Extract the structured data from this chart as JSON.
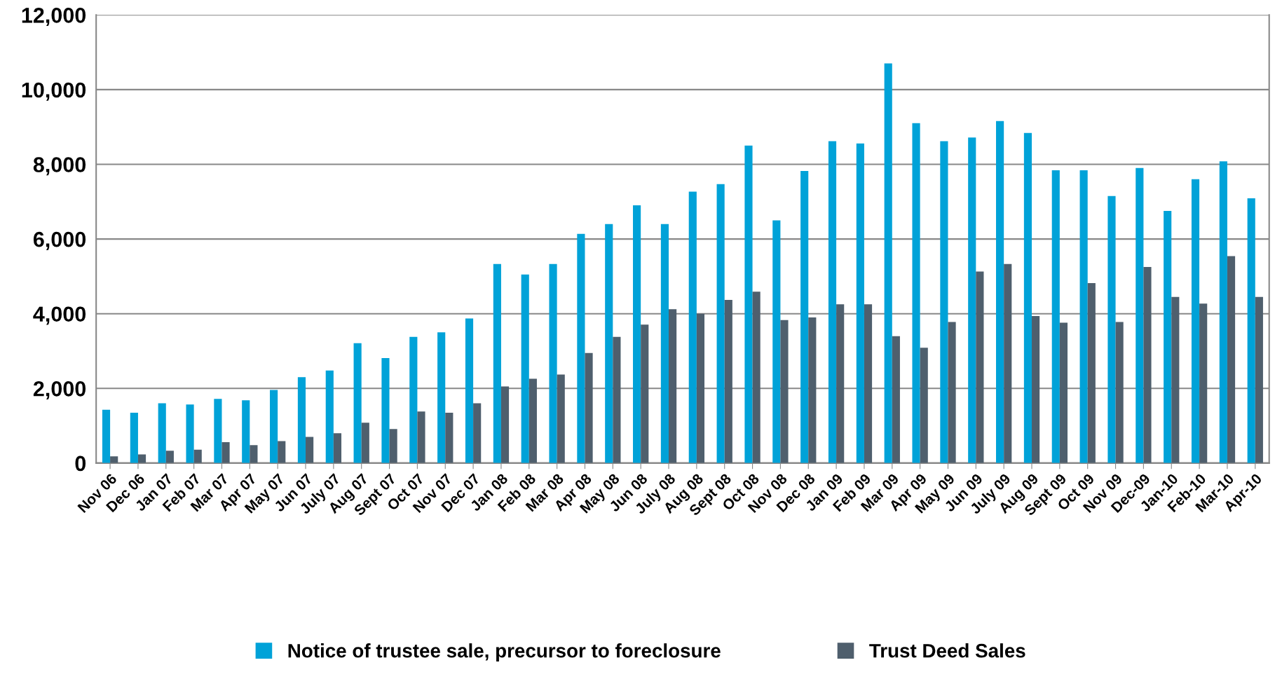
{
  "chart_data": {
    "type": "bar",
    "categories": [
      "Nov 06",
      "Dec 06",
      "Jan 07",
      "Feb 07",
      "Mar 07",
      "Apr 07",
      "May 07",
      "Jun 07",
      "July 07",
      "Aug 07",
      "Sept 07",
      "Oct 07",
      "Nov 07",
      "Dec 07",
      "Jan 08",
      "Feb 08",
      "Mar 08",
      "Apr 08",
      "May 08",
      "Jun 08",
      "July 08",
      "Aug 08",
      "Sept 08",
      "Oct 08",
      "Nov 08",
      "Dec 08",
      "Jan 09",
      "Feb 09",
      "Mar 09",
      "Apr 09",
      "May 09",
      "Jun 09",
      "July 09",
      "Aug 09",
      "Sept 09",
      "Oct 09",
      "Nov 09",
      "Dec-09",
      "Jan-10",
      "Feb-10",
      "Mar-10",
      "Apr-10"
    ],
    "series": [
      {
        "name": "Notice of trustee sale, precursor to foreclosure",
        "color": "#00a2d8",
        "values": [
          1430,
          1350,
          1600,
          1570,
          1720,
          1680,
          1960,
          2300,
          2480,
          3210,
          2810,
          3380,
          3500,
          3870,
          5330,
          5050,
          5330,
          6140,
          6400,
          6900,
          6400,
          7270,
          7470,
          8500,
          6500,
          7820,
          8620,
          8560,
          10700,
          9100,
          8620,
          8720,
          9160,
          8840,
          7840,
          7840,
          7150,
          7900,
          6750,
          7600,
          8080,
          7090
        ]
      },
      {
        "name": "Trust Deed Sales",
        "color": "#4f5f6d",
        "values": [
          180,
          230,
          330,
          360,
          560,
          480,
          590,
          700,
          800,
          1080,
          910,
          1380,
          1350,
          1600,
          2050,
          2260,
          2370,
          2950,
          3380,
          3710,
          4120,
          4000,
          4370,
          4590,
          3830,
          3900,
          4250,
          4250,
          3400,
          3090,
          3780,
          5130,
          5330,
          3940,
          3760,
          4820,
          3780,
          5250,
          4450,
          4270,
          5540,
          4450
        ]
      }
    ],
    "ylim": [
      0,
      12000
    ],
    "yticks": [
      {
        "value": 0,
        "label": "0"
      },
      {
        "value": 2000,
        "label": "2,000"
      },
      {
        "value": 4000,
        "label": "4,000"
      },
      {
        "value": 6000,
        "label": "6,000"
      },
      {
        "value": 8000,
        "label": "8,000"
      },
      {
        "value": 10000,
        "label": "10,000"
      },
      {
        "value": 12000,
        "label": "12,000"
      }
    ],
    "grid": "y",
    "legend": "bottom"
  }
}
